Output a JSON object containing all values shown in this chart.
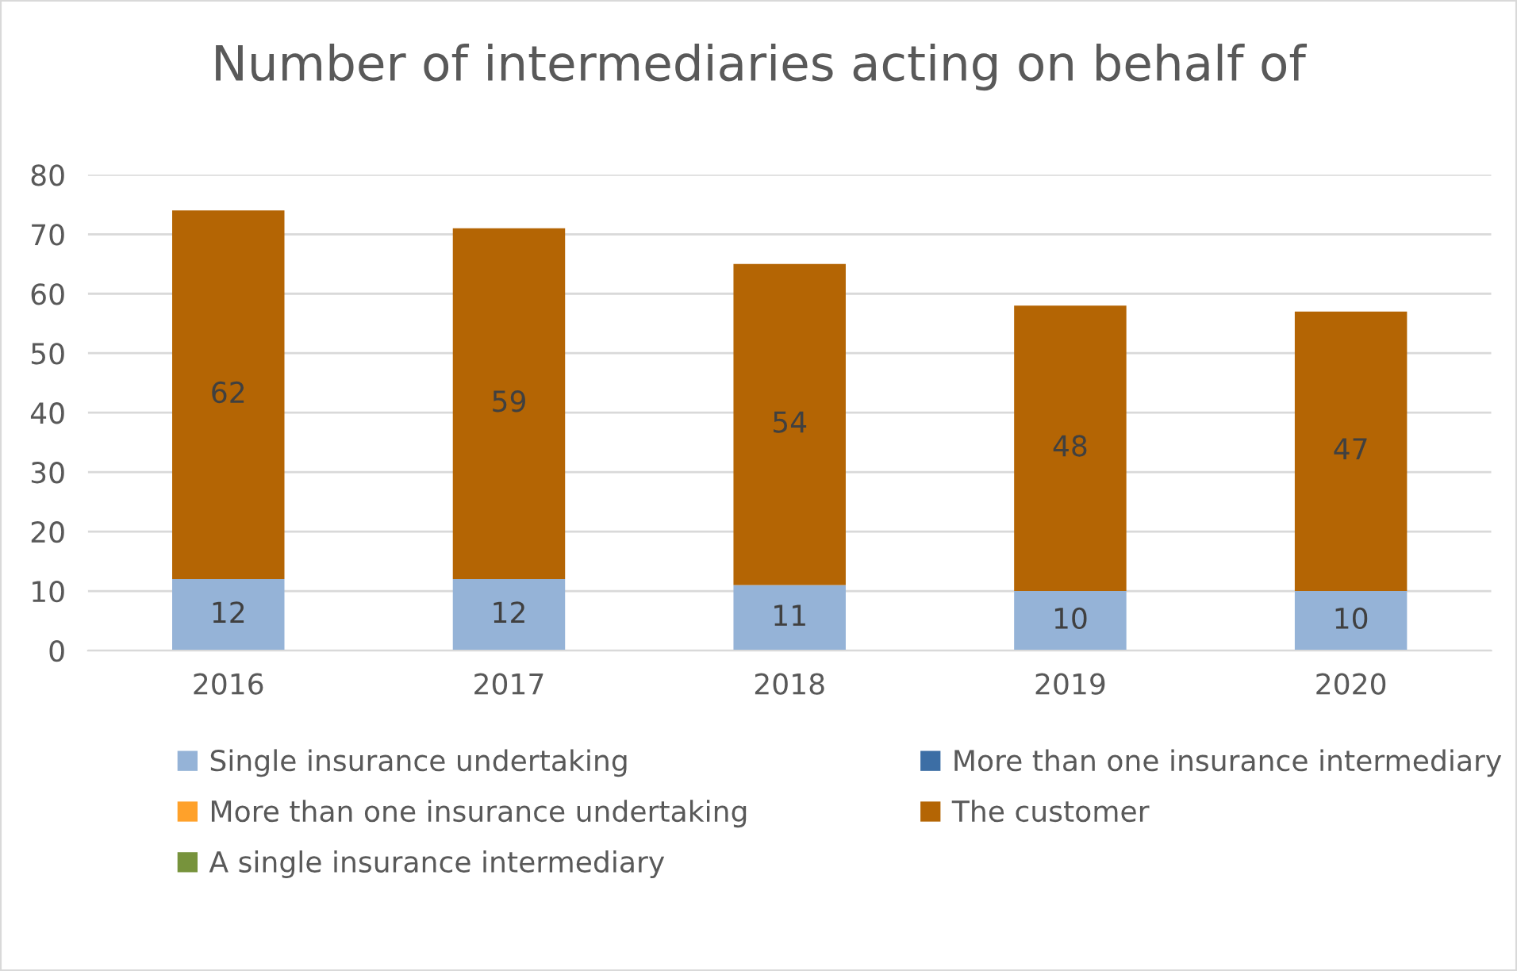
{
  "chart_data": {
    "type": "bar",
    "stacked": true,
    "title": "Number of intermediaries acting on behalf of",
    "categories": [
      "2016",
      "2017",
      "2018",
      "2019",
      "2020"
    ],
    "series": [
      {
        "name": "Single insurance undertaking",
        "color": "#95b3d7",
        "values": [
          12,
          12,
          11,
          10,
          10
        ]
      },
      {
        "name": "More than one insurance undertaking",
        "color": "#ffa12a",
        "values": [
          null,
          null,
          null,
          null,
          null
        ]
      },
      {
        "name": "A single insurance intermediary",
        "color": "#77933c",
        "values": [
          null,
          null,
          null,
          null,
          null
        ]
      },
      {
        "name": "More than one insurance intermediary",
        "color": "#3c6ea5",
        "values": [
          null,
          null,
          null,
          null,
          null
        ]
      },
      {
        "name": "The customer",
        "color": "#b46504",
        "values": [
          62,
          59,
          54,
          48,
          47
        ]
      }
    ],
    "ylim": [
      0,
      80
    ],
    "yticks": [
      0,
      10,
      20,
      30,
      40,
      50,
      60,
      70,
      80
    ],
    "grid": "y",
    "legend": "bottom",
    "data_labels": true
  }
}
